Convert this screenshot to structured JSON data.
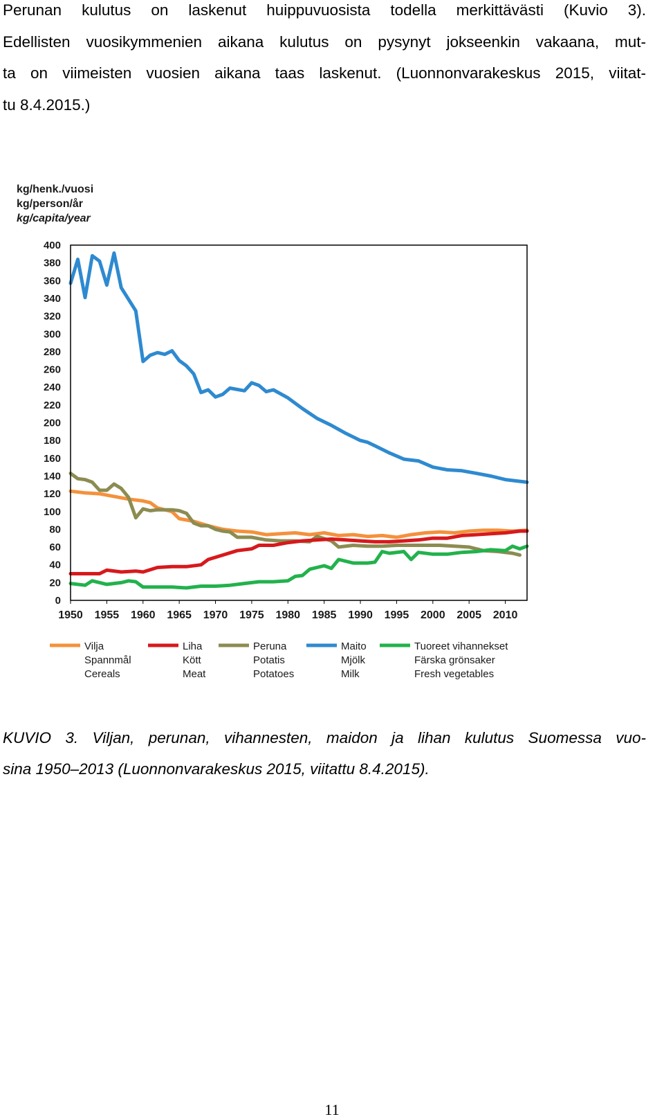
{
  "paragraph": {
    "lines": [
      "Perunan kulutus on laskenut huippuvuosista todella merkittävästi (Kuvio 3).",
      "Edellisten vuosikymmenien aikana kulutus on pysynyt jokseenkin vakaana, mut-",
      "ta on viimeisten vuosien aikana taas laskenut. (Luonnonvarakeskus 2015, viitat-",
      "tu 8.4.2015.)"
    ]
  },
  "caption": {
    "lines": [
      "KUVIO 3. Viljan, perunan, vihannesten, maidon ja lihan kulutus Suomessa vuo-",
      "sina 1950–2013 (Luonnonvarakeskus 2015, viitattu 8.4.2015)."
    ]
  },
  "page_number": "11",
  "chart_data": {
    "type": "line",
    "ylabel_lines": [
      "kg/henk./vuosi",
      "kg/person/år",
      "kg/capita/year"
    ],
    "ylim": [
      0,
      400
    ],
    "y_ticks": [
      0,
      20,
      40,
      60,
      80,
      100,
      120,
      140,
      160,
      180,
      200,
      220,
      240,
      260,
      280,
      300,
      320,
      340,
      360,
      380,
      400
    ],
    "xlim": [
      1950,
      2013
    ],
    "x_ticks": [
      1950,
      1955,
      1960,
      1965,
      1970,
      1975,
      1980,
      1985,
      1990,
      1995,
      2000,
      2005,
      2010
    ],
    "grid": false,
    "legend_position": "bottom",
    "series": [
      {
        "name_lines": [
          "Vilja",
          "Spannmål",
          "Cereals"
        ],
        "color": "#f4913c",
        "points": [
          [
            1950,
            123
          ],
          [
            1952,
            121
          ],
          [
            1954,
            120
          ],
          [
            1956,
            117
          ],
          [
            1958,
            114
          ],
          [
            1960,
            112
          ],
          [
            1961,
            110
          ],
          [
            1962,
            104
          ],
          [
            1964,
            100
          ],
          [
            1965,
            92
          ],
          [
            1967,
            89
          ],
          [
            1969,
            84
          ],
          [
            1971,
            80
          ],
          [
            1973,
            78
          ],
          [
            1975,
            77
          ],
          [
            1977,
            74
          ],
          [
            1979,
            75
          ],
          [
            1981,
            76
          ],
          [
            1983,
            74
          ],
          [
            1985,
            76
          ],
          [
            1987,
            73
          ],
          [
            1989,
            74
          ],
          [
            1991,
            72
          ],
          [
            1993,
            73
          ],
          [
            1995,
            71
          ],
          [
            1997,
            74
          ],
          [
            1999,
            76
          ],
          [
            2001,
            77
          ],
          [
            2003,
            76
          ],
          [
            2005,
            78
          ],
          [
            2007,
            79
          ],
          [
            2009,
            79
          ],
          [
            2011,
            78
          ],
          [
            2013,
            79
          ]
        ]
      },
      {
        "name_lines": [
          "Liha",
          "Kött",
          "Meat"
        ],
        "color": "#d7191c",
        "points": [
          [
            1950,
            30
          ],
          [
            1952,
            30
          ],
          [
            1954,
            30
          ],
          [
            1955,
            34
          ],
          [
            1957,
            32
          ],
          [
            1959,
            33
          ],
          [
            1960,
            32
          ],
          [
            1962,
            37
          ],
          [
            1964,
            38
          ],
          [
            1966,
            38
          ],
          [
            1968,
            40
          ],
          [
            1969,
            46
          ],
          [
            1971,
            51
          ],
          [
            1973,
            56
          ],
          [
            1975,
            58
          ],
          [
            1976,
            62
          ],
          [
            1978,
            62
          ],
          [
            1980,
            65
          ],
          [
            1982,
            67
          ],
          [
            1984,
            68
          ],
          [
            1986,
            69
          ],
          [
            1988,
            68
          ],
          [
            1990,
            67
          ],
          [
            1992,
            66
          ],
          [
            1994,
            66
          ],
          [
            1996,
            67
          ],
          [
            1998,
            68
          ],
          [
            2000,
            70
          ],
          [
            2002,
            70
          ],
          [
            2004,
            73
          ],
          [
            2006,
            74
          ],
          [
            2008,
            75
          ],
          [
            2010,
            76
          ],
          [
            2012,
            78
          ],
          [
            2013,
            78
          ]
        ]
      },
      {
        "name_lines": [
          "Peruna",
          "Potatis",
          "Potatoes"
        ],
        "color": "#8c8c52",
        "points": [
          [
            1950,
            143
          ],
          [
            1951,
            137
          ],
          [
            1952,
            136
          ],
          [
            1953,
            133
          ],
          [
            1954,
            124
          ],
          [
            1955,
            124
          ],
          [
            1956,
            131
          ],
          [
            1957,
            126
          ],
          [
            1958,
            116
          ],
          [
            1959,
            93
          ],
          [
            1960,
            103
          ],
          [
            1961,
            101
          ],
          [
            1962,
            102
          ],
          [
            1964,
            102
          ],
          [
            1965,
            101
          ],
          [
            1966,
            98
          ],
          [
            1967,
            87
          ],
          [
            1968,
            84
          ],
          [
            1969,
            84
          ],
          [
            1970,
            80
          ],
          [
            1971,
            78
          ],
          [
            1972,
            77
          ],
          [
            1973,
            71
          ],
          [
            1975,
            71
          ],
          [
            1977,
            68
          ],
          [
            1979,
            67
          ],
          [
            1981,
            67
          ],
          [
            1983,
            66
          ],
          [
            1984,
            72
          ],
          [
            1986,
            67
          ],
          [
            1987,
            60
          ],
          [
            1989,
            62
          ],
          [
            1991,
            61
          ],
          [
            1993,
            61
          ],
          [
            1995,
            62
          ],
          [
            1997,
            62
          ],
          [
            1999,
            62
          ],
          [
            2001,
            62
          ],
          [
            2003,
            61
          ],
          [
            2005,
            60
          ],
          [
            2007,
            56
          ],
          [
            2009,
            55
          ],
          [
            2011,
            53
          ],
          [
            2012,
            51
          ]
        ]
      },
      {
        "name_lines": [
          "Maito",
          "Mjölk",
          "Milk"
        ],
        "color": "#2e8ad0",
        "points": [
          [
            1950,
            357
          ],
          [
            1951,
            384
          ],
          [
            1952,
            341
          ],
          [
            1953,
            388
          ],
          [
            1954,
            382
          ],
          [
            1955,
            355
          ],
          [
            1956,
            391
          ],
          [
            1957,
            352
          ],
          [
            1958,
            339
          ],
          [
            1959,
            326
          ],
          [
            1960,
            269
          ],
          [
            1961,
            276
          ],
          [
            1962,
            279
          ],
          [
            1963,
            277
          ],
          [
            1964,
            281
          ],
          [
            1965,
            270
          ],
          [
            1966,
            264
          ],
          [
            1967,
            255
          ],
          [
            1968,
            234
          ],
          [
            1969,
            237
          ],
          [
            1970,
            229
          ],
          [
            1971,
            232
          ],
          [
            1972,
            239
          ],
          [
            1974,
            236
          ],
          [
            1975,
            245
          ],
          [
            1976,
            242
          ],
          [
            1977,
            235
          ],
          [
            1978,
            237
          ],
          [
            1980,
            228
          ],
          [
            1982,
            216
          ],
          [
            1984,
            205
          ],
          [
            1986,
            197
          ],
          [
            1988,
            188
          ],
          [
            1990,
            180
          ],
          [
            1991,
            178
          ],
          [
            1992,
            174
          ],
          [
            1994,
            166
          ],
          [
            1996,
            159
          ],
          [
            1998,
            157
          ],
          [
            2000,
            150
          ],
          [
            2002,
            147
          ],
          [
            2004,
            146
          ],
          [
            2006,
            143
          ],
          [
            2008,
            140
          ],
          [
            2010,
            136
          ],
          [
            2012,
            134
          ],
          [
            2013,
            133
          ]
        ]
      },
      {
        "name_lines": [
          "Tuoreet vihannekset",
          "Färska grönsaker",
          "Fresh vegetables"
        ],
        "color": "#22b24c",
        "points": [
          [
            1950,
            19
          ],
          [
            1952,
            17
          ],
          [
            1953,
            22
          ],
          [
            1955,
            18
          ],
          [
            1957,
            20
          ],
          [
            1958,
            22
          ],
          [
            1959,
            21
          ],
          [
            1960,
            15
          ],
          [
            1962,
            15
          ],
          [
            1964,
            15
          ],
          [
            1966,
            14
          ],
          [
            1968,
            16
          ],
          [
            1970,
            16
          ],
          [
            1972,
            17
          ],
          [
            1974,
            19
          ],
          [
            1976,
            21
          ],
          [
            1978,
            21
          ],
          [
            1980,
            22
          ],
          [
            1981,
            27
          ],
          [
            1982,
            28
          ],
          [
            1983,
            35
          ],
          [
            1985,
            39
          ],
          [
            1986,
            36
          ],
          [
            1987,
            46
          ],
          [
            1989,
            42
          ],
          [
            1991,
            42
          ],
          [
            1992,
            43
          ],
          [
            1993,
            55
          ],
          [
            1994,
            53
          ],
          [
            1996,
            55
          ],
          [
            1997,
            46
          ],
          [
            1998,
            54
          ],
          [
            2000,
            52
          ],
          [
            2002,
            52
          ],
          [
            2004,
            54
          ],
          [
            2006,
            55
          ],
          [
            2008,
            57
          ],
          [
            2010,
            56
          ],
          [
            2011,
            61
          ],
          [
            2012,
            58
          ],
          [
            2013,
            61
          ]
        ]
      }
    ]
  }
}
